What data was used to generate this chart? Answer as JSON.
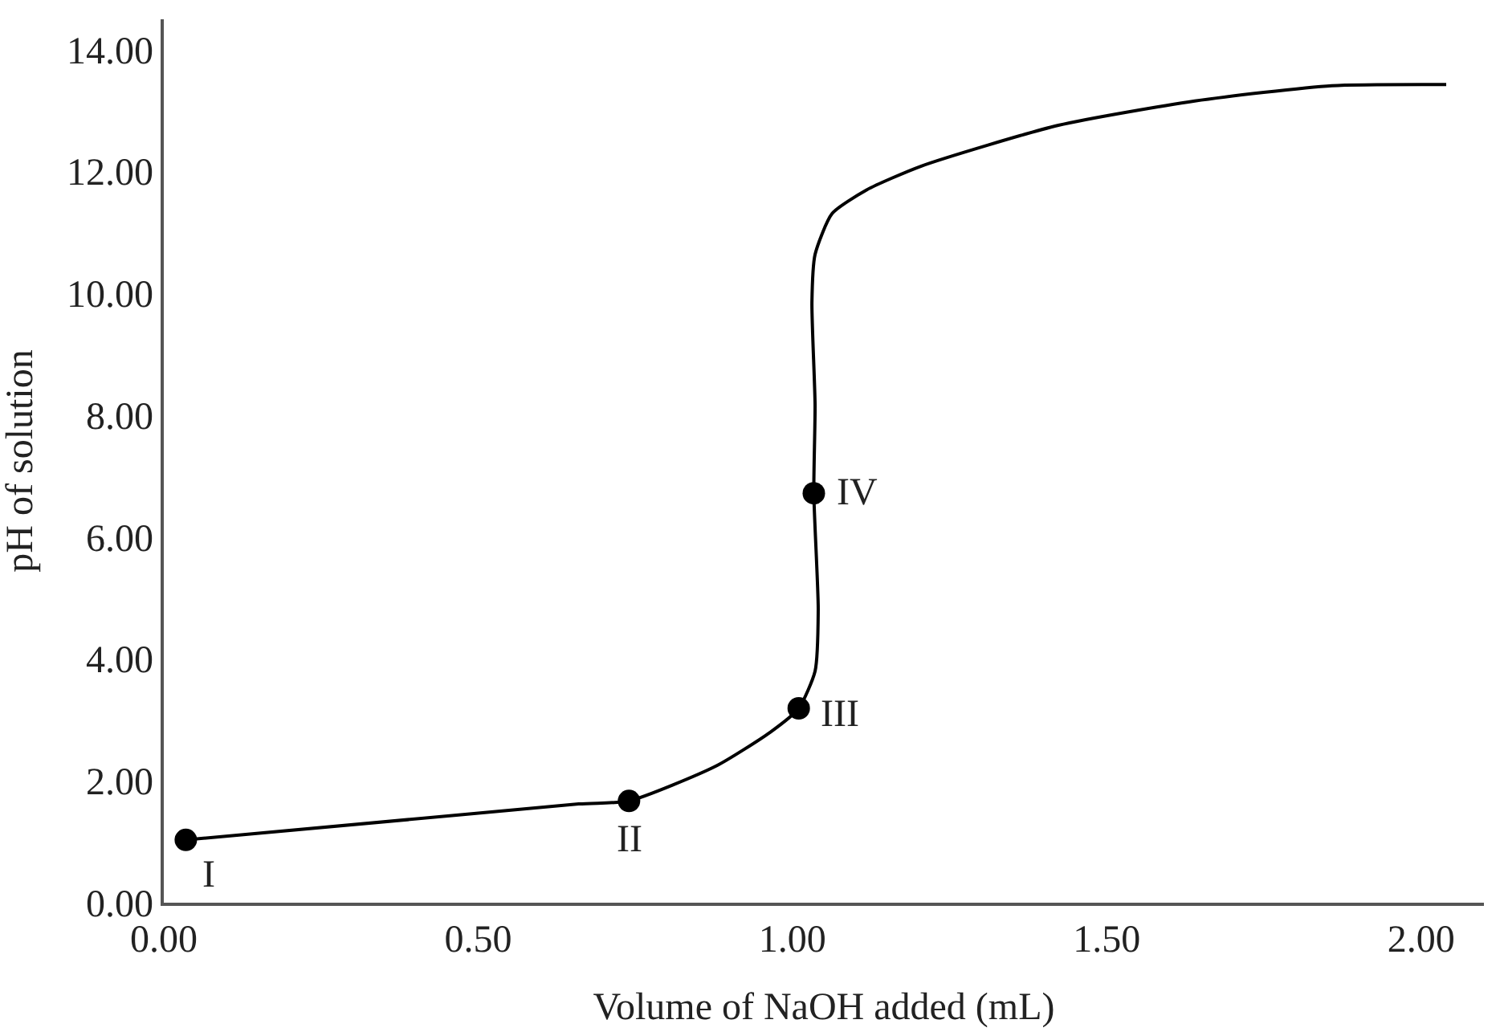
{
  "chart_data": {
    "type": "line",
    "xlabel": "Volume of NaOH added (mL)",
    "ylabel": "pH of solution",
    "series": [
      {
        "color": "#000000",
        "marker": "none",
        "x": [
          0.035,
          0.66,
          0.74,
          0.878,
          0.965,
          1.01,
          1.036,
          1.041,
          1.034,
          1.036,
          1.031,
          1.036,
          1.063,
          1.118,
          1.205,
          1.423,
          1.64,
          1.858,
          2.04
        ],
        "values": [
          1.03,
          1.62,
          1.67,
          2.24,
          2.8,
          3.19,
          3.8,
          4.81,
          6.72,
          8.17,
          9.85,
          10.64,
          11.31,
          11.7,
          12.09,
          12.76,
          13.16,
          13.41,
          13.43
        ]
      },
      {
        "type": "scatter",
        "color": "#000000",
        "marker": "circle",
        "x": [
          0.035,
          0.74,
          1.01,
          1.034
        ],
        "values": [
          1.03,
          1.67,
          3.19,
          6.72
        ]
      }
    ],
    "annotations": [
      {
        "text": "I",
        "x": 0.035,
        "y": 1.03
      },
      {
        "text": "II",
        "x": 0.74,
        "y": 1.67
      },
      {
        "text": "III",
        "x": 1.01,
        "y": 3.19
      },
      {
        "text": "IV",
        "x": 1.034,
        "y": 6.72
      }
    ],
    "xlim": [
      0,
      2.1
    ],
    "xticks": [
      {
        "value": 0,
        "label": "0.00"
      },
      {
        "value": 0.5,
        "label": "0.50"
      },
      {
        "value": 1,
        "label": "1.00"
      },
      {
        "value": 1.5,
        "label": "1.50"
      },
      {
        "value": 2,
        "label": "2.00"
      }
    ],
    "ylim": [
      0,
      14.5
    ],
    "yticks": [
      {
        "value": 0,
        "label": "0.00"
      },
      {
        "value": 2,
        "label": "2.00"
      },
      {
        "value": 4,
        "label": "4.00"
      },
      {
        "value": 6,
        "label": "6.00"
      },
      {
        "value": 8,
        "label": "8.00"
      },
      {
        "value": 10,
        "label": "10.00"
      },
      {
        "value": 12,
        "label": "12.00"
      },
      {
        "value": 14,
        "label": "14.00"
      }
    ]
  }
}
